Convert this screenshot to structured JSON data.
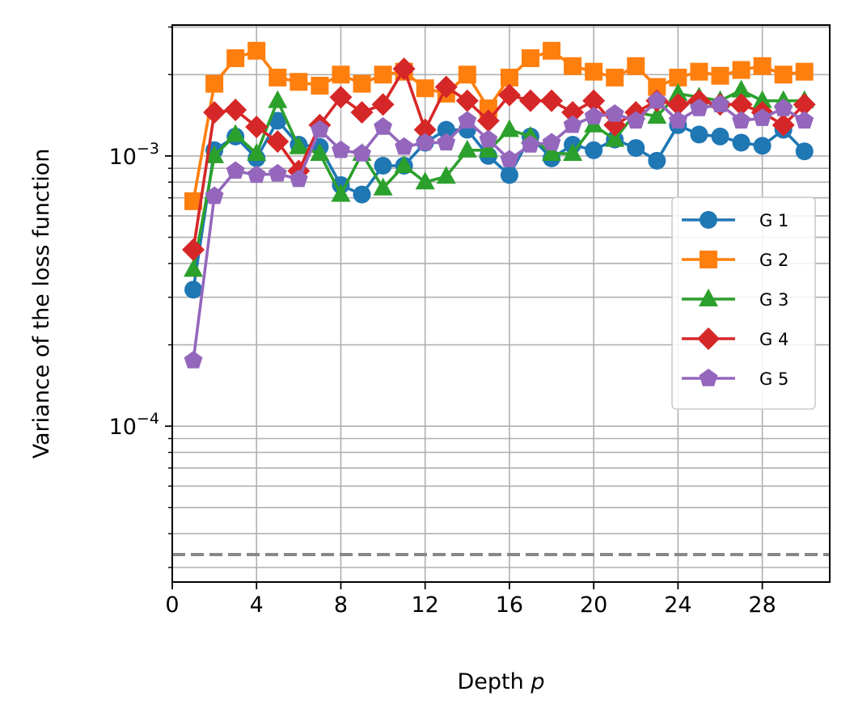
{
  "chart_data": {
    "type": "line",
    "xlabel": "Depth",
    "xlabel_var": "p",
    "ylabel": "Variance of the loss function",
    "yscale": "log",
    "xlim": [
      0,
      31.2
    ],
    "ylim": [
      2.65e-05,
      0.00305
    ],
    "x_ticks": [
      0,
      4,
      8,
      12,
      16,
      20,
      24,
      28
    ],
    "x_tick_labels": [
      "0",
      "4",
      "8",
      "12",
      "16",
      "20",
      "24",
      "28"
    ],
    "y_major_ticks": [
      0.0001,
      0.001
    ],
    "y_major_tick_labels": [
      {
        "base": "10",
        "exp": "−4"
      },
      {
        "base": "10",
        "exp": "−3"
      }
    ],
    "grid": true,
    "legend_position": "center-right",
    "reference_line": {
      "y": 3.35e-05,
      "style": "dashed",
      "color": "#888888"
    },
    "x": [
      1,
      2,
      3,
      4,
      5,
      6,
      7,
      8,
      9,
      10,
      11,
      12,
      13,
      14,
      15,
      16,
      17,
      18,
      19,
      20,
      21,
      22,
      23,
      24,
      25,
      26,
      27,
      28,
      29,
      30
    ],
    "series": [
      {
        "name": "G 1",
        "color": "#1f77b4",
        "marker": "circle",
        "values": [
          0.00032,
          0.00105,
          0.00118,
          0.00098,
          0.00135,
          0.0011,
          0.00108,
          0.00078,
          0.00072,
          0.00092,
          0.00092,
          0.00112,
          0.00125,
          0.00125,
          0.001,
          0.00085,
          0.00118,
          0.00098,
          0.0011,
          0.00105,
          0.00115,
          0.00107,
          0.00096,
          0.0013,
          0.0012,
          0.00118,
          0.00112,
          0.00109,
          0.00125,
          0.00104
        ]
      },
      {
        "name": "G 2",
        "color": "#ff7f0e",
        "marker": "square",
        "values": [
          0.00068,
          0.00185,
          0.0023,
          0.00245,
          0.00195,
          0.00188,
          0.00182,
          0.002,
          0.00185,
          0.002,
          0.00205,
          0.00178,
          0.0017,
          0.002,
          0.0015,
          0.00195,
          0.0023,
          0.00245,
          0.00215,
          0.00205,
          0.00195,
          0.00215,
          0.0018,
          0.00195,
          0.00205,
          0.00198,
          0.00208,
          0.00215,
          0.002,
          0.00205
        ]
      },
      {
        "name": "G 3",
        "color": "#2ca02c",
        "marker": "triangle",
        "values": [
          0.00038,
          0.001,
          0.0012,
          0.00102,
          0.0016,
          0.00108,
          0.00102,
          0.00072,
          0.00102,
          0.00076,
          0.00092,
          0.0008,
          0.00084,
          0.00105,
          0.00105,
          0.00125,
          0.00118,
          0.00102,
          0.00102,
          0.0013,
          0.00115,
          0.00145,
          0.0014,
          0.0017,
          0.00165,
          0.0016,
          0.00175,
          0.0016,
          0.0016,
          0.0016
        ]
      },
      {
        "name": "G 4",
        "color": "#d62728",
        "marker": "diamond",
        "values": [
          0.00045,
          0.00145,
          0.00148,
          0.00128,
          0.00113,
          0.00088,
          0.0013,
          0.00165,
          0.00145,
          0.00155,
          0.0021,
          0.00125,
          0.0018,
          0.0016,
          0.00135,
          0.00168,
          0.0016,
          0.0016,
          0.00145,
          0.0016,
          0.0013,
          0.00145,
          0.0016,
          0.00155,
          0.0016,
          0.00155,
          0.00155,
          0.00145,
          0.0013,
          0.00155
        ]
      },
      {
        "name": "G 5",
        "color": "#9467bd",
        "marker": "pentagon",
        "values": [
          0.000175,
          0.00071,
          0.00088,
          0.00085,
          0.00086,
          0.00082,
          0.00125,
          0.00105,
          0.00102,
          0.00128,
          0.00108,
          0.00112,
          0.00112,
          0.00135,
          0.00115,
          0.00097,
          0.0011,
          0.00112,
          0.0013,
          0.0014,
          0.00143,
          0.00135,
          0.0016,
          0.00135,
          0.0015,
          0.00155,
          0.00135,
          0.00138,
          0.0015,
          0.00135
        ]
      }
    ]
  }
}
